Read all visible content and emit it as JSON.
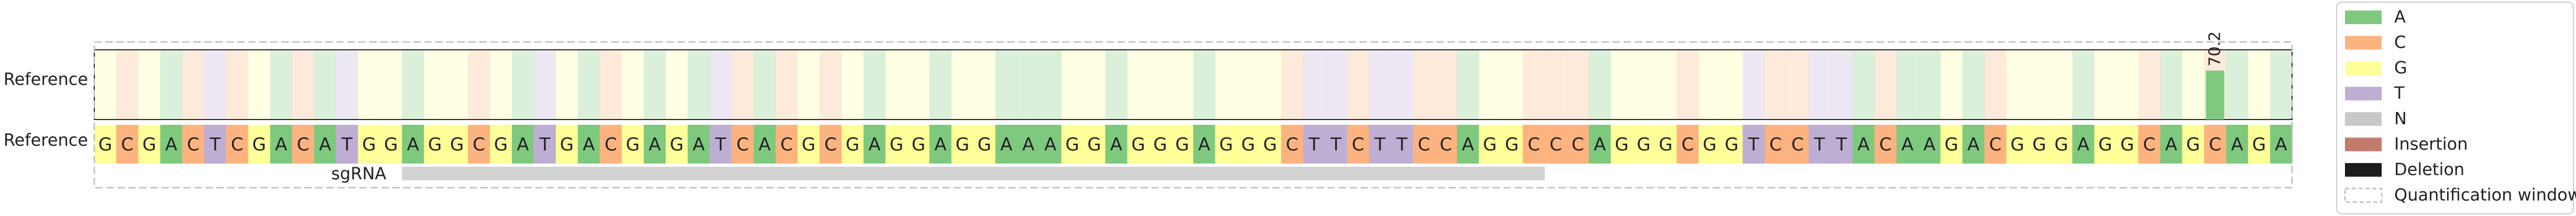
{
  "chart_data": {
    "type": "heatmap",
    "title": "",
    "row_labels": [
      "Reference",
      "Reference"
    ],
    "sgrna_label": "sgRNA",
    "reference_sequence": "GCGACTCGACATGGAGGCGATGACGAGATCACGCGAGGAGGAAAGGAGGGAGGGCTTCTTCCAGGCCCAGGGCGGTCCTTACAAGACGGGAGGCAGCAGA",
    "sgrna_range": [
      14,
      66
    ],
    "modification_bars": [
      {
        "position": 96,
        "value": 70.2,
        "label": "70.2"
      }
    ],
    "ylim": [
      0,
      100
    ],
    "nucleotide_colors": {
      "A": "#7FC97F",
      "C": "#FDB37F",
      "G": "#FFFF99",
      "T": "#BEAED4",
      "N": "#C8C8C8"
    },
    "legend_position": "right",
    "legend": [
      {
        "label": "A",
        "color": "#7FC97F",
        "style": "fill"
      },
      {
        "label": "C",
        "color": "#FDB37F",
        "style": "fill"
      },
      {
        "label": "G",
        "color": "#FFFF99",
        "style": "fill"
      },
      {
        "label": "T",
        "color": "#BEAED4",
        "style": "fill"
      },
      {
        "label": "N",
        "color": "#C8C8C8",
        "style": "fill"
      },
      {
        "label": "Insertion",
        "color": "#C27C6E",
        "style": "fill"
      },
      {
        "label": "Deletion",
        "color": "#1C1C1C",
        "style": "fill"
      },
      {
        "label": "Quantification window",
        "color": "#BBBBBB",
        "style": "dashed"
      }
    ]
  }
}
